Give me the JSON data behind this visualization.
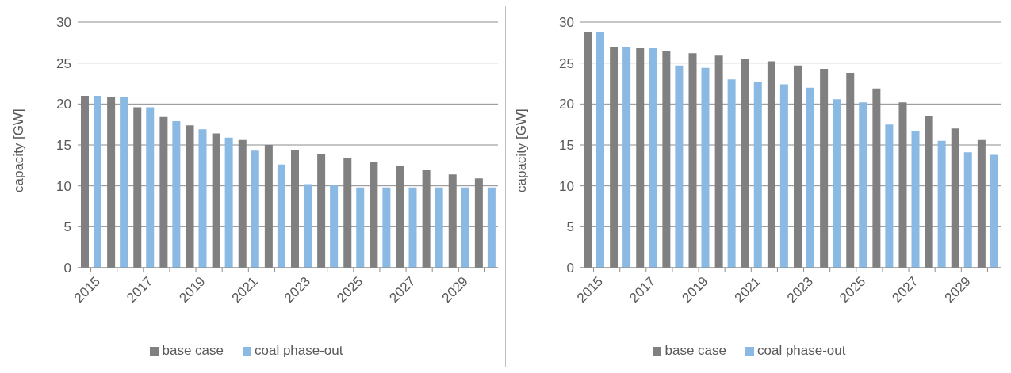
{
  "chart_data": [
    {
      "type": "bar",
      "ylabel": "capacity [GW]",
      "categories": [
        "2015",
        null,
        "2017",
        null,
        "2019",
        null,
        "2021",
        null,
        "2023",
        null,
        "2025",
        null,
        "2027",
        null,
        "2029",
        null
      ],
      "series": [
        {
          "name": "base case",
          "color": "#808080",
          "values": [
            21,
            20.8,
            19.6,
            18.4,
            17.4,
            16.4,
            15.6,
            15.0,
            14.4,
            13.9,
            13.4,
            12.9,
            12.4,
            11.9,
            11.4,
            10.9
          ]
        },
        {
          "name": "coal phase-out",
          "color": "#8ab9e3",
          "values": [
            21,
            20.8,
            19.6,
            17.9,
            16.9,
            15.9,
            14.3,
            12.6,
            10.2,
            10.1,
            9.8,
            9.8,
            9.8,
            9.8,
            9.8,
            9.8
          ]
        }
      ],
      "ylim": [
        0,
        30
      ],
      "yticks": [
        0,
        5,
        10,
        15,
        20,
        25,
        30
      ],
      "grid": "y",
      "legend": "bottom"
    },
    {
      "type": "bar",
      "ylabel": "capacity [GW]",
      "categories": [
        "2015",
        null,
        "2017",
        null,
        "2019",
        null,
        "2021",
        null,
        "2023",
        null,
        "2025",
        null,
        "2027",
        null,
        "2029",
        null
      ],
      "series": [
        {
          "name": "base case",
          "color": "#808080",
          "values": [
            28.8,
            27.0,
            26.8,
            26.5,
            26.2,
            25.9,
            25.5,
            25.2,
            24.7,
            24.3,
            23.8,
            21.9,
            20.2,
            18.5,
            17.0,
            15.6
          ]
        },
        {
          "name": "coal phase-out",
          "color": "#8ab9e3",
          "values": [
            28.8,
            27.0,
            26.8,
            24.7,
            24.4,
            23.0,
            22.7,
            22.4,
            22.0,
            20.6,
            20.2,
            17.5,
            16.7,
            15.5,
            14.1,
            13.8
          ]
        }
      ],
      "ylim": [
        0,
        30
      ],
      "yticks": [
        0,
        5,
        10,
        15,
        20,
        25,
        30
      ],
      "grid": "y",
      "legend": "bottom"
    }
  ]
}
